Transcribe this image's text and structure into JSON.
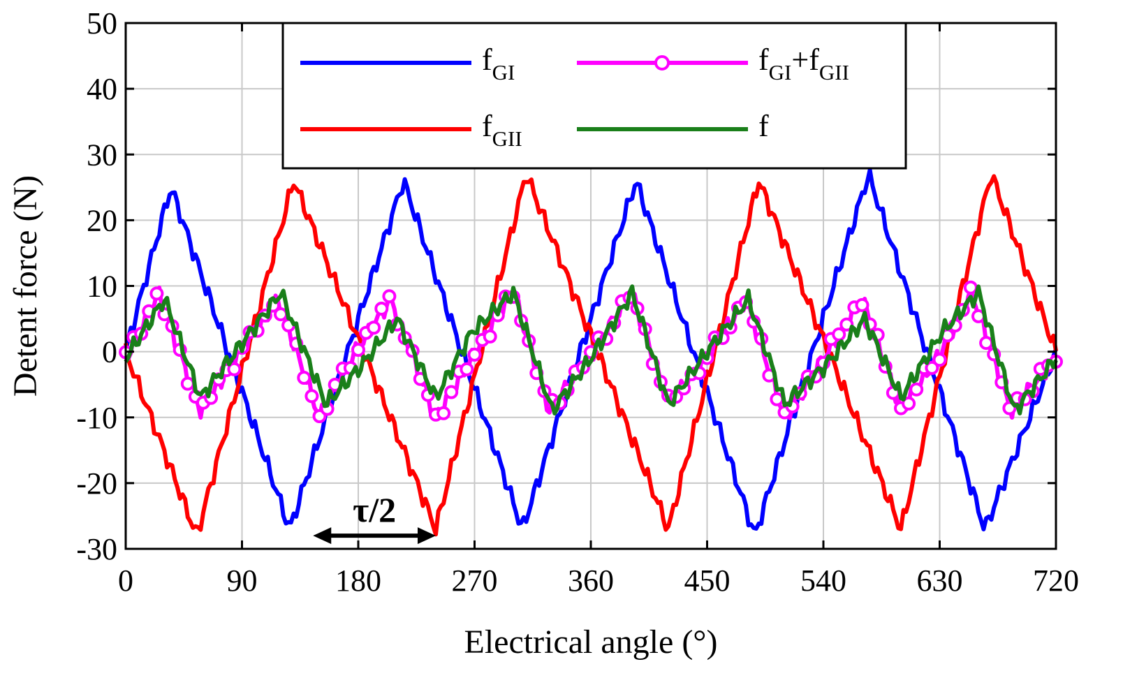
{
  "chart_data": {
    "type": "line",
    "xlabel": "Electrical angle (°)",
    "ylabel": "Detent force (N)",
    "xlim": [
      0,
      720
    ],
    "ylim": [
      -30,
      50
    ],
    "xticks": [
      0,
      90,
      180,
      270,
      360,
      450,
      540,
      630,
      720
    ],
    "xtick_labels": [
      "0",
      "90",
      "180",
      "270",
      "360",
      "450",
      "540",
      "630",
      "720"
    ],
    "yticks": [
      -30,
      -20,
      -10,
      0,
      10,
      20,
      30,
      40,
      50
    ],
    "ytick_labels": [
      "-30",
      "-20",
      "-10",
      "0",
      "10",
      "20",
      "30",
      "40",
      "50"
    ],
    "grid": true,
    "legend_position": "top-center",
    "period_deg": 180,
    "series": [
      {
        "name": "fGI",
        "label_main": "f",
        "label_sub": "GI",
        "label_plus": "",
        "label_main2": "",
        "label_sub2": "",
        "color": "#0000ff",
        "marker": "none",
        "peaks": [
          [
            0,
            0
          ],
          [
            35,
            25
          ],
          [
            127,
            -27
          ],
          [
            215,
            26
          ],
          [
            307,
            -27
          ],
          [
            395,
            26
          ],
          [
            487,
            -28
          ],
          [
            575,
            27
          ],
          [
            665,
            -27
          ],
          [
            720,
            0
          ]
        ]
      },
      {
        "name": "fGII",
        "label_main": "f",
        "label_sub": "GII",
        "label_plus": "",
        "label_main2": "",
        "label_sub2": "",
        "color": "#ff0000",
        "marker": "none",
        "peaks": [
          [
            0,
            0
          ],
          [
            55,
            -28
          ],
          [
            130,
            26
          ],
          [
            240,
            -27
          ],
          [
            310,
            27
          ],
          [
            420,
            -27
          ],
          [
            490,
            26
          ],
          [
            600,
            -27
          ],
          [
            670,
            27
          ],
          [
            720,
            0
          ]
        ]
      },
      {
        "name": "fGI+fGII",
        "label_main": "f",
        "label_sub": "GI",
        "label_plus": "+",
        "label_main2": "f",
        "label_sub2": "GII",
        "color": "#ff00ff",
        "marker": "circle",
        "peaks": [
          [
            0,
            -1
          ],
          [
            25,
            9
          ],
          [
            58,
            -9
          ],
          [
            85,
            -1
          ],
          [
            118,
            8
          ],
          [
            150,
            -10
          ],
          [
            178,
            0
          ],
          [
            205,
            8
          ],
          [
            240,
            -10
          ],
          [
            268,
            -1
          ],
          [
            300,
            9
          ],
          [
            328,
            -9
          ],
          [
            358,
            -1
          ],
          [
            392,
            9
          ],
          [
            420,
            -8
          ],
          [
            450,
            -1
          ],
          [
            480,
            8
          ],
          [
            510,
            -10
          ],
          [
            540,
            -1
          ],
          [
            570,
            8
          ],
          [
            600,
            -9
          ],
          [
            628,
            -1
          ],
          [
            655,
            9
          ],
          [
            685,
            -9
          ],
          [
            720,
            -1
          ]
        ]
      },
      {
        "name": "f",
        "label_main": "f",
        "label_sub": "",
        "label_plus": "",
        "label_main2": "",
        "label_sub2": "",
        "color": "#1a7f1a",
        "marker": "none",
        "peaks": [
          [
            0,
            -1
          ],
          [
            30,
            8
          ],
          [
            58,
            -7
          ],
          [
            85,
            0
          ],
          [
            120,
            9
          ],
          [
            155,
            -8
          ],
          [
            183,
            -2
          ],
          [
            210,
            5
          ],
          [
            240,
            -7
          ],
          [
            268,
            3
          ],
          [
            300,
            9
          ],
          [
            330,
            -9
          ],
          [
            360,
            -1
          ],
          [
            392,
            9
          ],
          [
            420,
            -8
          ],
          [
            450,
            0
          ],
          [
            482,
            8
          ],
          [
            510,
            -8
          ],
          [
            542,
            -2
          ],
          [
            572,
            5
          ],
          [
            600,
            -7
          ],
          [
            632,
            3
          ],
          [
            660,
            9
          ],
          [
            688,
            -9
          ],
          [
            720,
            -1
          ]
        ]
      }
    ],
    "annotations": [
      {
        "text": "τ/2",
        "x_start": 145,
        "x_end": 240,
        "y": -28
      }
    ]
  }
}
